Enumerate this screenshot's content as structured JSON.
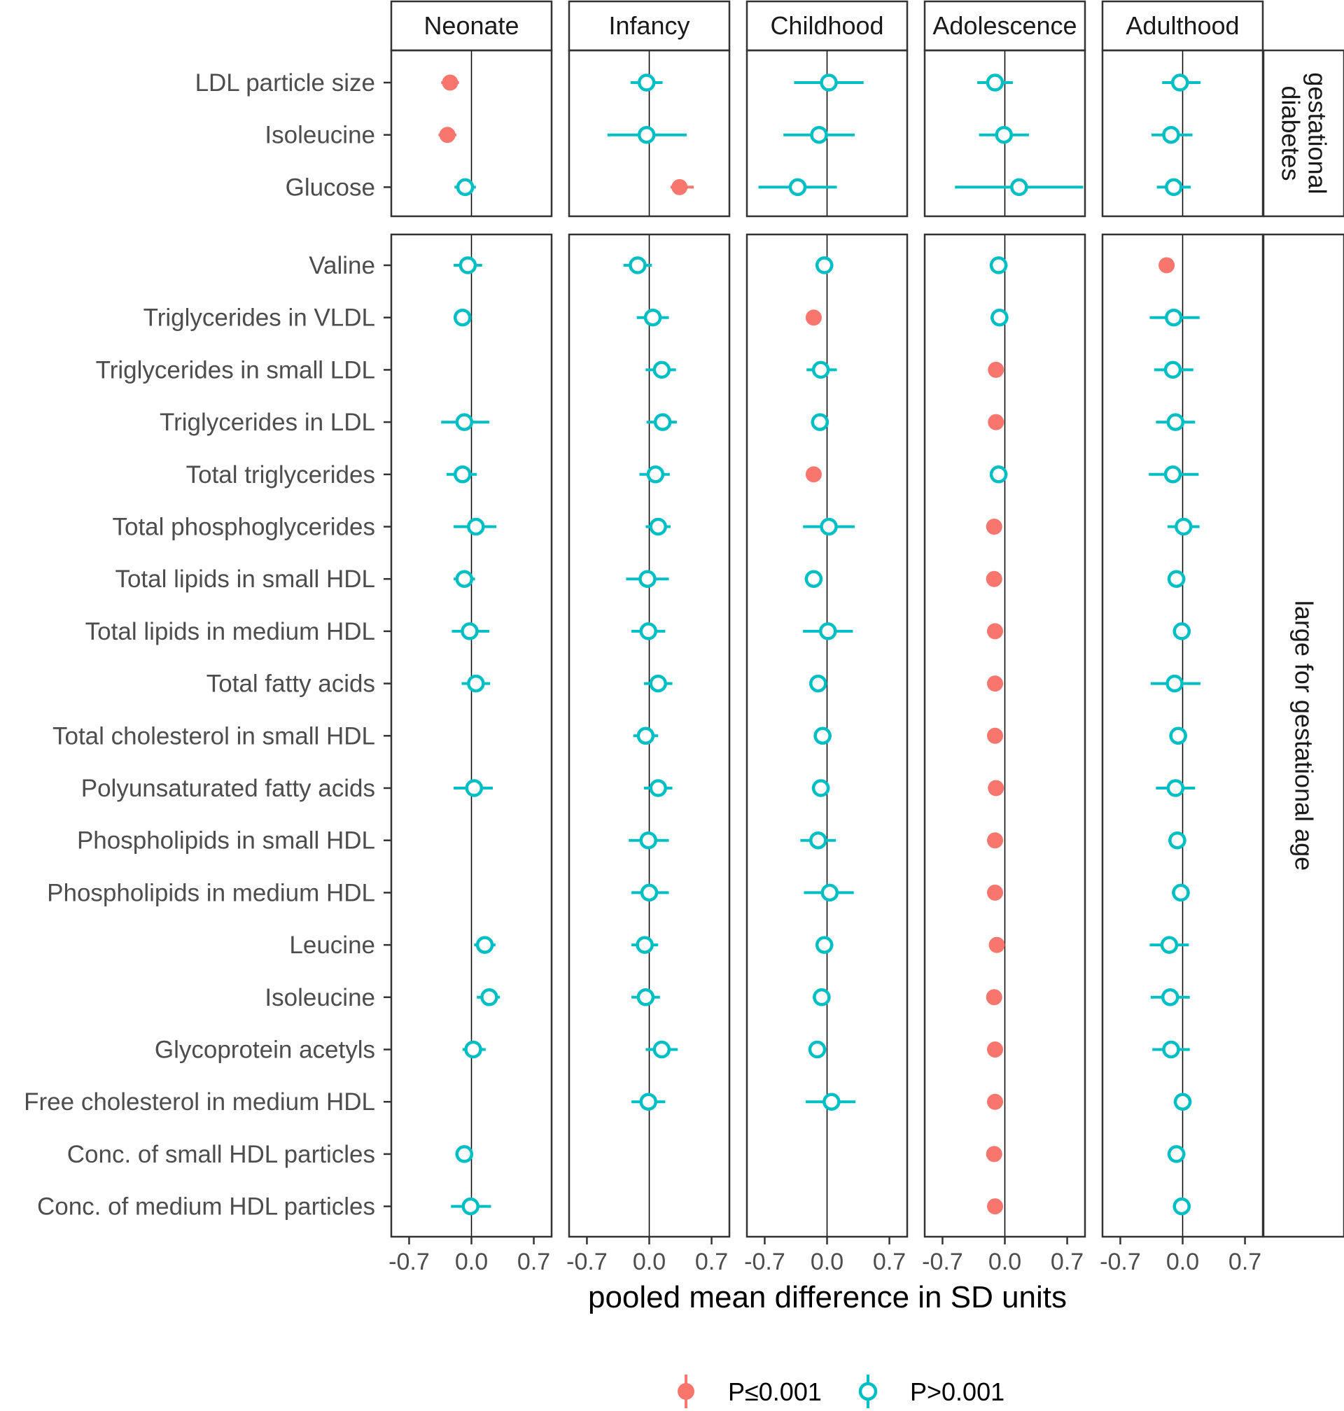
{
  "chart_data": {
    "type": "scatter",
    "subtype": "forest-plot",
    "xlabel": "pooled mean difference in SD units",
    "xlim": [
      -0.9,
      0.9
    ],
    "xticks": [
      -0.7,
      0.0,
      0.7
    ],
    "xtick_labels": [
      "-0.7",
      "0.0",
      "0.7"
    ],
    "grid": false,
    "legend_position": "bottom",
    "columns": [
      "Neonate",
      "Infancy",
      "Childhood",
      "Adolescence",
      "Adulthood"
    ],
    "legend": [
      {
        "key": "sig",
        "label": "P≤0.001",
        "color": "#F8766D"
      },
      {
        "key": "ns",
        "label": "P>0.001",
        "color": "#00BFC4"
      }
    ],
    "groups": [
      {
        "name": "gestational diabetes",
        "strip_lines": [
          "gestational",
          "diabetes"
        ],
        "rows": [
          {
            "label": "LDL particle size",
            "values": [
              {
                "est": -0.24,
                "lo": -0.34,
                "hi": -0.14,
                "sig": true
              },
              {
                "est": -0.03,
                "lo": -0.21,
                "hi": 0.15,
                "ns": true,
                "sig": false
              },
              {
                "est": 0.02,
                "lo": -0.37,
                "hi": 0.41,
                "sig": false
              },
              {
                "est": -0.11,
                "lo": -0.31,
                "hi": 0.09,
                "sig": false
              },
              {
                "est": -0.03,
                "lo": -0.23,
                "hi": 0.2,
                "sig": false
              }
            ]
          },
          {
            "label": "Isoleucine",
            "values": [
              {
                "est": -0.27,
                "lo": -0.37,
                "hi": -0.17,
                "sig": true
              },
              {
                "est": -0.03,
                "lo": -0.47,
                "hi": 0.42,
                "sig": false
              },
              {
                "est": -0.09,
                "lo": -0.49,
                "hi": 0.31,
                "sig": false
              },
              {
                "est": -0.01,
                "lo": -0.29,
                "hi": 0.27,
                "sig": false
              },
              {
                "est": -0.13,
                "lo": -0.35,
                "hi": 0.11,
                "sig": false
              }
            ]
          },
          {
            "label": "Glucose",
            "values": [
              {
                "est": -0.07,
                "lo": -0.19,
                "hi": 0.05,
                "sig": false
              },
              {
                "est": 0.34,
                "lo": 0.24,
                "hi": 0.5,
                "sig": true
              },
              {
                "est": -0.33,
                "lo": -0.77,
                "hi": 0.11,
                "sig": false
              },
              {
                "est": 0.16,
                "lo": -0.56,
                "hi": 0.88,
                "sig": false
              },
              {
                "est": -0.1,
                "lo": -0.29,
                "hi": 0.09,
                "sig": false
              }
            ]
          }
        ]
      },
      {
        "name": "large for gestational age",
        "strip_lines": [
          "large for gestational age"
        ],
        "rows": [
          {
            "label": "Valine",
            "values": [
              {
                "est": -0.04,
                "lo": -0.2,
                "hi": 0.12,
                "sig": false
              },
              {
                "est": -0.13,
                "lo": -0.29,
                "hi": 0.03,
                "sig": false
              },
              {
                "est": -0.03,
                "lo": -0.13,
                "hi": 0.07,
                "sig": false
              },
              {
                "est": -0.07,
                "lo": -0.17,
                "hi": 0.03,
                "sig": false
              },
              {
                "est": -0.18,
                "lo": -0.24,
                "hi": -0.12,
                "sig": true
              }
            ]
          },
          {
            "label": "Triglycerides in VLDL",
            "values": [
              {
                "est": -0.1,
                "lo": -0.2,
                "hi": 0.0,
                "sig": false
              },
              {
                "est": 0.04,
                "lo": -0.14,
                "hi": 0.22,
                "sig": false
              },
              {
                "est": -0.15,
                "lo": -0.21,
                "hi": -0.09,
                "sig": true
              },
              {
                "est": -0.06,
                "lo": -0.16,
                "hi": 0.04,
                "sig": false
              },
              {
                "est": -0.1,
                "lo": -0.37,
                "hi": 0.19,
                "sig": false
              }
            ]
          },
          {
            "label": "Triglycerides in small LDL",
            "values": null,
            "values_by_col": [
              null,
              {
                "est": 0.14,
                "lo": -0.04,
                "hi": 0.3,
                "sig": false
              },
              {
                "est": -0.07,
                "lo": -0.23,
                "hi": 0.11,
                "sig": false
              },
              {
                "est": -0.1,
                "lo": -0.16,
                "hi": -0.04,
                "sig": true
              },
              {
                "est": -0.11,
                "lo": -0.32,
                "hi": 0.12,
                "sig": false
              }
            ]
          },
          {
            "label": "Triglycerides in LDL",
            "values": [
              {
                "est": -0.08,
                "lo": -0.34,
                "hi": 0.2,
                "sig": false
              },
              {
                "est": 0.15,
                "lo": -0.03,
                "hi": 0.31,
                "sig": false
              },
              {
                "est": -0.08,
                "lo": -0.18,
                "hi": 0.02,
                "sig": false
              },
              {
                "est": -0.1,
                "lo": -0.16,
                "hi": -0.04,
                "sig": true
              },
              {
                "est": -0.08,
                "lo": -0.3,
                "hi": 0.14,
                "sig": false
              }
            ]
          },
          {
            "label": "Total triglycerides",
            "values": [
              {
                "est": -0.1,
                "lo": -0.28,
                "hi": 0.06,
                "sig": false
              },
              {
                "est": 0.07,
                "lo": -0.11,
                "hi": 0.23,
                "sig": false
              },
              {
                "est": -0.15,
                "lo": -0.21,
                "hi": -0.09,
                "sig": true
              },
              {
                "est": -0.07,
                "lo": -0.17,
                "hi": 0.03,
                "sig": false
              },
              {
                "est": -0.11,
                "lo": -0.38,
                "hi": 0.18,
                "sig": false
              }
            ]
          },
          {
            "label": "Total phosphoglycerides",
            "values": [
              {
                "est": 0.05,
                "lo": -0.2,
                "hi": 0.28,
                "sig": false
              },
              {
                "est": 0.1,
                "lo": -0.04,
                "hi": 0.24,
                "sig": false
              },
              {
                "est": 0.02,
                "lo": -0.27,
                "hi": 0.31,
                "sig": false
              },
              {
                "est": -0.12,
                "lo": -0.18,
                "hi": -0.06,
                "sig": true
              },
              {
                "est": 0.01,
                "lo": -0.17,
                "hi": 0.19,
                "sig": false
              }
            ]
          },
          {
            "label": "Total lipids in small HDL",
            "values": [
              {
                "est": -0.08,
                "lo": -0.2,
                "hi": 0.04,
                "sig": false
              },
              {
                "est": -0.02,
                "lo": -0.26,
                "hi": 0.22,
                "sig": false
              },
              {
                "est": -0.15,
                "lo": -0.25,
                "hi": -0.05,
                "sig": false
              },
              {
                "est": -0.12,
                "lo": -0.18,
                "hi": -0.06,
                "sig": true
              },
              {
                "est": -0.07,
                "lo": -0.17,
                "hi": 0.03,
                "sig": false
              }
            ]
          },
          {
            "label": "Total lipids in medium HDL",
            "values": [
              {
                "est": -0.02,
                "lo": -0.22,
                "hi": 0.2,
                "sig": false
              },
              {
                "est": -0.01,
                "lo": -0.2,
                "hi": 0.18,
                "sig": false
              },
              {
                "est": 0.01,
                "lo": -0.27,
                "hi": 0.29,
                "sig": false
              },
              {
                "est": -0.11,
                "lo": -0.17,
                "hi": -0.05,
                "sig": true
              },
              {
                "est": -0.01,
                "lo": -0.11,
                "hi": 0.09,
                "sig": false
              }
            ]
          },
          {
            "label": "Total fatty acids",
            "values": [
              {
                "est": 0.05,
                "lo": -0.11,
                "hi": 0.21,
                "sig": false
              },
              {
                "est": 0.1,
                "lo": -0.06,
                "hi": 0.26,
                "sig": false
              },
              {
                "est": -0.1,
                "lo": -0.2,
                "hi": 0.0,
                "sig": false
              },
              {
                "est": -0.11,
                "lo": -0.17,
                "hi": -0.05,
                "sig": true
              },
              {
                "est": -0.09,
                "lo": -0.36,
                "hi": 0.2,
                "sig": false
              }
            ]
          },
          {
            "label": "Total cholesterol in small HDL",
            "values_by_col": [
              null,
              {
                "est": -0.04,
                "lo": -0.18,
                "hi": 0.1,
                "sig": false
              },
              {
                "est": -0.05,
                "lo": -0.15,
                "hi": 0.05,
                "sig": false
              },
              {
                "est": -0.11,
                "lo": -0.17,
                "hi": -0.05,
                "sig": true
              },
              {
                "est": -0.05,
                "lo": -0.15,
                "hi": 0.05,
                "sig": false
              }
            ]
          },
          {
            "label": "Polyunsaturated fatty acids",
            "values": [
              {
                "est": 0.03,
                "lo": -0.2,
                "hi": 0.24,
                "sig": false
              },
              {
                "est": 0.1,
                "lo": -0.06,
                "hi": 0.26,
                "sig": false
              },
              {
                "est": -0.07,
                "lo": -0.17,
                "hi": 0.03,
                "sig": false
              },
              {
                "est": -0.1,
                "lo": -0.16,
                "hi": -0.04,
                "sig": true
              },
              {
                "est": -0.08,
                "lo": -0.3,
                "hi": 0.14,
                "sig": false
              }
            ]
          },
          {
            "label": "Phospholipids in small HDL",
            "values_by_col": [
              null,
              {
                "est": -0.01,
                "lo": -0.23,
                "hi": 0.22,
                "sig": false
              },
              {
                "est": -0.1,
                "lo": -0.3,
                "hi": 0.1,
                "sig": false
              },
              {
                "est": -0.11,
                "lo": -0.17,
                "hi": -0.05,
                "sig": true
              },
              {
                "est": -0.06,
                "lo": -0.16,
                "hi": 0.04,
                "sig": false
              }
            ]
          },
          {
            "label": "Phospholipids in medium HDL",
            "values_by_col": [
              null,
              {
                "est": 0.0,
                "lo": -0.2,
                "hi": 0.22,
                "sig": false
              },
              {
                "est": 0.03,
                "lo": -0.26,
                "hi": 0.3,
                "sig": false
              },
              {
                "est": -0.11,
                "lo": -0.17,
                "hi": -0.05,
                "sig": true
              },
              {
                "est": -0.02,
                "lo": -0.12,
                "hi": 0.08,
                "sig": false
              }
            ]
          },
          {
            "label": "Leucine",
            "values": [
              {
                "est": 0.15,
                "lo": 0.03,
                "hi": 0.27,
                "sig": false
              },
              {
                "est": -0.05,
                "lo": -0.2,
                "hi": 0.1,
                "sig": false
              },
              {
                "est": -0.03,
                "lo": -0.13,
                "hi": 0.07,
                "sig": false
              },
              {
                "est": -0.09,
                "lo": -0.15,
                "hi": -0.03,
                "sig": true
              },
              {
                "est": -0.15,
                "lo": -0.37,
                "hi": 0.07,
                "sig": false
              }
            ]
          },
          {
            "label": "Isoleucine",
            "values": [
              {
                "est": 0.2,
                "lo": 0.06,
                "hi": 0.32,
                "sig": false
              },
              {
                "est": -0.04,
                "lo": -0.2,
                "hi": 0.12,
                "sig": false
              },
              {
                "est": -0.06,
                "lo": -0.16,
                "hi": 0.04,
                "sig": false
              },
              {
                "est": -0.12,
                "lo": -0.18,
                "hi": -0.06,
                "sig": true
              },
              {
                "est": -0.14,
                "lo": -0.36,
                "hi": 0.08,
                "sig": false
              }
            ]
          },
          {
            "label": "Glycoprotein acetyls",
            "values": [
              {
                "est": 0.02,
                "lo": -0.1,
                "hi": 0.16,
                "sig": false
              },
              {
                "est": 0.14,
                "lo": -0.04,
                "hi": 0.32,
                "sig": false
              },
              {
                "est": -0.11,
                "lo": -0.21,
                "hi": -0.01,
                "sig": false
              },
              {
                "est": -0.11,
                "lo": -0.17,
                "hi": -0.05,
                "sig": true
              },
              {
                "est": -0.13,
                "lo": -0.34,
                "hi": 0.08,
                "sig": false
              }
            ]
          },
          {
            "label": "Free cholesterol in medium HDL",
            "values_by_col": [
              null,
              {
                "est": -0.01,
                "lo": -0.2,
                "hi": 0.18,
                "sig": false
              },
              {
                "est": 0.05,
                "lo": -0.24,
                "hi": 0.32,
                "sig": false
              },
              {
                "est": -0.11,
                "lo": -0.17,
                "hi": -0.05,
                "sig": true
              },
              {
                "est": 0.0,
                "lo": -0.1,
                "hi": 0.1,
                "sig": false
              }
            ]
          },
          {
            "label": "Conc. of small HDL particles",
            "values_by_col": [
              {
                "est": -0.08,
                "lo": -0.18,
                "hi": 0.02,
                "sig": false
              },
              null,
              null,
              {
                "est": -0.12,
                "lo": -0.18,
                "hi": -0.06,
                "sig": true
              },
              {
                "est": -0.07,
                "lo": -0.17,
                "hi": 0.03,
                "sig": false
              }
            ]
          },
          {
            "label": "Conc. of medium HDL particles",
            "values_by_col": [
              {
                "est": -0.01,
                "lo": -0.23,
                "hi": 0.22,
                "sig": false
              },
              null,
              null,
              {
                "est": -0.11,
                "lo": -0.17,
                "hi": -0.05,
                "sig": true
              },
              {
                "est": -0.01,
                "lo": -0.11,
                "hi": 0.09,
                "sig": false
              }
            ]
          }
        ]
      }
    ]
  }
}
